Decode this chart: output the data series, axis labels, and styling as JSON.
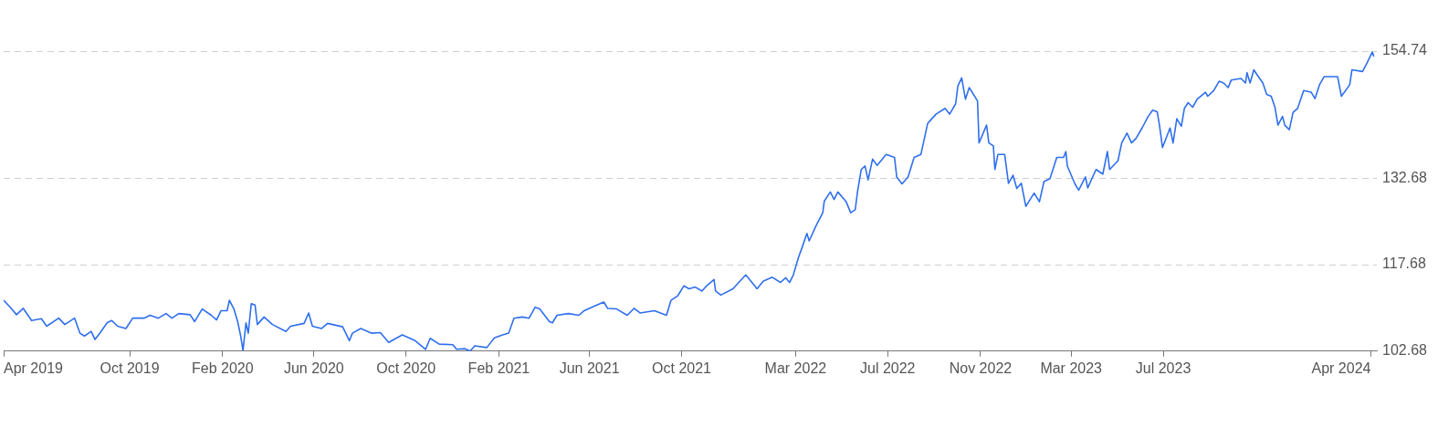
{
  "chart_data": {
    "type": "line",
    "x": [
      "2019-04-17",
      "2019-04-25",
      "2019-05-04",
      "2019-05-13",
      "2019-05-24",
      "2019-06-06",
      "2019-06-13",
      "2019-06-29",
      "2019-07-07",
      "2019-07-20",
      "2019-07-27",
      "2019-08-02",
      "2019-08-11",
      "2019-08-16",
      "2019-08-23",
      "2019-09-01",
      "2019-09-07",
      "2019-09-15",
      "2019-09-26",
      "2019-10-05",
      "2019-10-20",
      "2019-10-28",
      "2019-11-08",
      "2019-11-18",
      "2019-11-26",
      "2019-12-05",
      "2019-12-20",
      "2019-12-26",
      "2020-01-05",
      "2020-01-17",
      "2020-01-24",
      "2020-01-30",
      "2020-02-07",
      "2020-02-10",
      "2020-02-16",
      "2020-02-21",
      "2020-02-25",
      "2020-02-28",
      "2020-03-03",
      "2020-03-06",
      "2020-03-10",
      "2020-03-15",
      "2020-03-18",
      "2020-03-27",
      "2020-04-07",
      "2020-04-25",
      "2020-05-01",
      "2020-05-19",
      "2020-05-25",
      "2020-05-30",
      "2020-06-11",
      "2020-06-19",
      "2020-07-09",
      "2020-07-18",
      "2020-07-22",
      "2020-08-02",
      "2020-08-16",
      "2020-08-28",
      "2020-09-08",
      "2020-09-26",
      "2020-10-13",
      "2020-10-27",
      "2020-11-02",
      "2020-11-14",
      "2020-12-02",
      "2020-12-07",
      "2020-12-18",
      "2020-12-25",
      "2020-12-31",
      "2021-01-16",
      "2021-01-26",
      "2021-02-06",
      "2021-02-14",
      "2021-02-21",
      "2021-03-04",
      "2021-03-13",
      "2021-03-21",
      "2021-03-27",
      "2021-04-09",
      "2021-04-13",
      "2021-04-19",
      "2021-05-04",
      "2021-05-18",
      "2021-05-25",
      "2021-06-06",
      "2021-06-20",
      "2021-06-25",
      "2021-07-07",
      "2021-07-21",
      "2021-07-30",
      "2021-08-07",
      "2021-08-26",
      "2021-09-11",
      "2021-09-17",
      "2021-09-26",
      "2021-10-04",
      "2021-10-11",
      "2021-10-19",
      "2021-10-28",
      "2021-11-03",
      "2021-11-13",
      "2021-11-15",
      "2021-11-22",
      "2021-12-08",
      "2021-12-25",
      "2021-12-30",
      "2022-01-09",
      "2022-01-17",
      "2022-01-29",
      "2022-02-09",
      "2022-02-16",
      "2022-02-21",
      "2022-02-26",
      "2022-03-05",
      "2022-03-10",
      "2022-03-16",
      "2022-03-19",
      "2022-03-28",
      "2022-04-06",
      "2022-04-08",
      "2022-04-16",
      "2022-04-21",
      "2022-04-26",
      "2022-05-07",
      "2022-05-13",
      "2022-05-19",
      "2022-05-22",
      "2022-05-27",
      "2022-06-01",
      "2022-06-05",
      "2022-06-11",
      "2022-06-17",
      "2022-06-29",
      "2022-07-10",
      "2022-07-13",
      "2022-07-20",
      "2022-07-28",
      "2022-08-05",
      "2022-08-14",
      "2022-08-23",
      "2022-09-03",
      "2022-09-15",
      "2022-09-21",
      "2022-09-29",
      "2022-10-02",
      "2022-10-07",
      "2022-10-12",
      "2022-10-17",
      "2022-10-28",
      "2022-10-30",
      "2022-11-09",
      "2022-11-12",
      "2022-11-18",
      "2022-11-20",
      "2022-11-24",
      "2022-12-03",
      "2022-12-08",
      "2022-12-14",
      "2022-12-19",
      "2022-12-25",
      "2022-12-31",
      "2023-01-11",
      "2023-01-18",
      "2023-01-24",
      "2023-02-01",
      "2023-02-10",
      "2023-02-19",
      "2023-02-22",
      "2023-02-24",
      "2023-03-06",
      "2023-03-11",
      "2023-03-20",
      "2023-03-23",
      "2023-04-03",
      "2023-04-12",
      "2023-04-18",
      "2023-04-21",
      "2023-05-02",
      "2023-05-07",
      "2023-05-14",
      "2023-05-20",
      "2023-05-26",
      "2023-06-03",
      "2023-06-11",
      "2023-06-17",
      "2023-06-23",
      "2023-06-26",
      "2023-06-30",
      "2023-07-10",
      "2023-07-14",
      "2023-07-19",
      "2023-07-25",
      "2023-07-29",
      "2023-08-03",
      "2023-08-09",
      "2023-08-15",
      "2023-08-26",
      "2023-08-29",
      "2023-09-06",
      "2023-09-13",
      "2023-09-19",
      "2023-09-25",
      "2023-09-29",
      "2023-10-12",
      "2023-10-18",
      "2023-10-20",
      "2023-10-24",
      "2023-10-29",
      "2023-11-04",
      "2023-11-10",
      "2023-11-15",
      "2023-11-21",
      "2023-11-26",
      "2023-11-30",
      "2023-12-06",
      "2023-12-09",
      "2023-12-15",
      "2023-12-20",
      "2023-12-26",
      "2024-01-03",
      "2024-01-13",
      "2024-01-18",
      "2024-01-24",
      "2024-01-30",
      "2024-02-17",
      "2024-02-22",
      "2024-03-04",
      "2024-03-07",
      "2024-03-21",
      "2024-03-27",
      "2024-04-03",
      "2024-04-05"
    ],
    "series": [
      {
        "color": "#2f6fed",
        "values": [
          111.5,
          110.4,
          109.0,
          110.1,
          108.0,
          108.3,
          107.0,
          108.4,
          107.3,
          108.4,
          105.8,
          105.3,
          106.1,
          104.7,
          105.9,
          107.6,
          108.0,
          107.0,
          106.6,
          108.4,
          108.4,
          108.9,
          108.4,
          109.2,
          108.4,
          109.2,
          109.0,
          107.8,
          110.0,
          108.9,
          108.1,
          109.7,
          109.7,
          111.5,
          110.0,
          107.8,
          105.3,
          102.8,
          107.6,
          105.8,
          110.9,
          110.7,
          107.3,
          108.6,
          107.3,
          106.1,
          107.0,
          107.5,
          109.3,
          107.0,
          106.6,
          107.5,
          106.9,
          104.5,
          105.8,
          106.6,
          105.8,
          105.9,
          104.2,
          105.5,
          104.5,
          103.0,
          104.9,
          103.9,
          103.8,
          103.0,
          103.1,
          102.7,
          103.6,
          103.3,
          105.0,
          105.5,
          105.8,
          108.4,
          108.6,
          108.4,
          110.3,
          110.0,
          107.8,
          107.6,
          108.9,
          109.2,
          108.9,
          109.7,
          110.4,
          111.2,
          110.1,
          110.0,
          108.9,
          110.1,
          109.3,
          109.7,
          108.9,
          111.5,
          112.3,
          114.0,
          113.5,
          113.8,
          113.1,
          114.0,
          115.1,
          113.1,
          112.4,
          113.5,
          115.9,
          115.1,
          113.5,
          114.8,
          115.5,
          114.6,
          115.4,
          114.6,
          115.9,
          119.0,
          120.8,
          123.1,
          121.8,
          124.4,
          126.7,
          128.7,
          130.3,
          129.0,
          130.3,
          128.6,
          126.7,
          127.2,
          130.3,
          134.2,
          134.8,
          132.4,
          136.0,
          134.9,
          136.8,
          136.3,
          132.9,
          131.7,
          132.9,
          136.3,
          136.8,
          142.2,
          143.8,
          144.8,
          143.8,
          145.6,
          148.7,
          150.1,
          146.4,
          148.4,
          146.1,
          138.8,
          141.9,
          138.8,
          138.3,
          134.2,
          136.8,
          136.8,
          131.8,
          133.2,
          130.9,
          131.8,
          127.8,
          130.1,
          128.6,
          132.1,
          132.6,
          136.3,
          136.3,
          137.3,
          134.8,
          131.7,
          130.6,
          132.9,
          131.0,
          134.2,
          133.4,
          137.3,
          134.2,
          135.7,
          138.8,
          140.5,
          138.8,
          139.6,
          141.4,
          143.4,
          144.5,
          144.2,
          141.9,
          138.0,
          141.4,
          138.8,
          143.0,
          141.7,
          144.8,
          145.8,
          145.0,
          146.4,
          147.6,
          146.9,
          147.9,
          149.5,
          149.2,
          148.4,
          149.7,
          150.0,
          149.2,
          151.0,
          149.2,
          151.5,
          150.3,
          149.2,
          147.2,
          146.9,
          145.0,
          141.9,
          143.4,
          141.9,
          141.1,
          144.1,
          144.8,
          147.9,
          147.6,
          146.5,
          148.9,
          150.3,
          150.3,
          146.9,
          148.9,
          151.5,
          151.2,
          152.7,
          154.6,
          153.8
        ]
      }
    ],
    "xlim": [
      "2019-04-17",
      "2024-04-09"
    ],
    "xticks": [
      {
        "value": "2019-04-17",
        "label": "Apr 2019"
      },
      {
        "value": "2019-10-01",
        "label": "Oct 2019"
      },
      {
        "value": "2020-02-01",
        "label": "Feb 2020"
      },
      {
        "value": "2020-06-01",
        "label": "Jun 2020"
      },
      {
        "value": "2020-10-01",
        "label": "Oct 2020"
      },
      {
        "value": "2021-02-01",
        "label": "Feb 2021"
      },
      {
        "value": "2021-06-01",
        "label": "Jun 2021"
      },
      {
        "value": "2021-10-01",
        "label": "Oct 2021"
      },
      {
        "value": "2022-03-01",
        "label": "Mar 2022"
      },
      {
        "value": "2022-07-01",
        "label": "Jul 2022"
      },
      {
        "value": "2022-11-01",
        "label": "Nov 2022"
      },
      {
        "value": "2023-03-01",
        "label": "Mar 2023"
      },
      {
        "value": "2023-07-01",
        "label": "Jul 2023"
      },
      {
        "value": "2024-04-01",
        "label": "Apr 2024"
      }
    ],
    "ylim": [
      102.68,
      154.74
    ],
    "yticks": [
      102.68,
      117.68,
      132.68,
      154.74
    ],
    "grid": "y"
  }
}
